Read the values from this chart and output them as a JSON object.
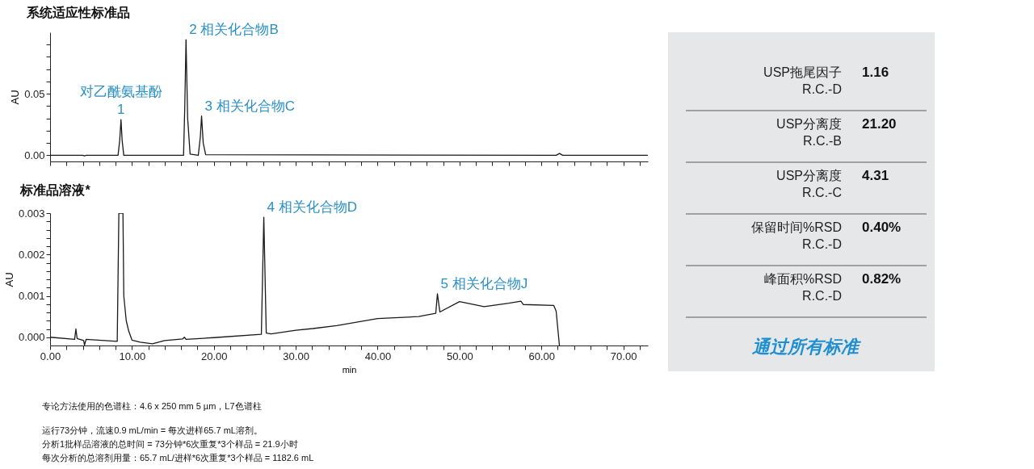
{
  "chart_data": [
    {
      "type": "line",
      "title": "系统适应性标准品",
      "ylabel": "AU",
      "color": "#1a1a1a",
      "tick_labels": "y",
      "grid": false,
      "x": [
        0,
        4.0,
        4.2,
        4.4,
        8.3,
        8.5,
        8.66,
        8.8,
        9.0,
        16.3,
        16.45,
        16.6,
        16.8,
        17.1,
        18.1,
        18.35,
        18.5,
        18.7,
        19.0,
        61.8,
        62.2,
        62.6,
        73
      ],
      "values": [
        0,
        0,
        -0.0005,
        0,
        0,
        0.012,
        0.029,
        0.012,
        0,
        0,
        0.04,
        0.094,
        0.03,
        0.001,
        0,
        0.015,
        0.032,
        0.01,
        0.0005,
        0,
        0.0015,
        0,
        0
      ],
      "xlim": [
        0,
        73
      ],
      "xticks": [
        {
          "value": 0,
          "label": null
        },
        {
          "value": 2,
          "label": null
        },
        {
          "value": 4,
          "label": null
        },
        {
          "value": 6,
          "label": null
        },
        {
          "value": 8,
          "label": null
        },
        {
          "value": 10,
          "label": null
        },
        {
          "value": 12,
          "label": null
        },
        {
          "value": 14,
          "label": null
        },
        {
          "value": 16,
          "label": null
        },
        {
          "value": 18,
          "label": null
        },
        {
          "value": 20,
          "label": null
        },
        {
          "value": 22,
          "label": null
        },
        {
          "value": 24,
          "label": null
        },
        {
          "value": 26,
          "label": null
        },
        {
          "value": 28,
          "label": null
        },
        {
          "value": 30,
          "label": null
        },
        {
          "value": 32,
          "label": null
        },
        {
          "value": 34,
          "label": null
        },
        {
          "value": 36,
          "label": null
        },
        {
          "value": 38,
          "label": null
        },
        {
          "value": 40,
          "label": null
        },
        {
          "value": 42,
          "label": null
        },
        {
          "value": 44,
          "label": null
        },
        {
          "value": 46,
          "label": null
        },
        {
          "value": 48,
          "label": null
        },
        {
          "value": 50,
          "label": null
        },
        {
          "value": 52,
          "label": null
        },
        {
          "value": 54,
          "label": null
        },
        {
          "value": 56,
          "label": null
        },
        {
          "value": 58,
          "label": null
        },
        {
          "value": 60,
          "label": null
        },
        {
          "value": 62,
          "label": null
        },
        {
          "value": 64,
          "label": null
        },
        {
          "value": 66,
          "label": null
        },
        {
          "value": 68,
          "label": null
        },
        {
          "value": 70,
          "label": null
        },
        {
          "value": 72,
          "label": null
        }
      ],
      "ylim": [
        -0.005,
        0.1
      ],
      "yticks": [
        {
          "value": 0,
          "label": "0.00"
        },
        {
          "value": 0.01,
          "label": null
        },
        {
          "value": 0.02,
          "label": null
        },
        {
          "value": 0.03,
          "label": null
        },
        {
          "value": 0.04,
          "label": null
        },
        0.05,
        {
          "value": 0.06,
          "label": null
        },
        {
          "value": 0.07,
          "label": null
        },
        {
          "value": 0.08,
          "label": null
        },
        {
          "value": 0.09,
          "label": null
        }
      ],
      "annotations": [
        {
          "text": "1",
          "x": 8.66,
          "y": 0.029
        },
        {
          "text": "对乙酰氨基酚",
          "x": 8.66,
          "y": 0.029
        },
        {
          "text": "2  相关化合物B",
          "x": 16.6,
          "y": 0.094
        },
        {
          "text": "3  相关化合物C",
          "x": 18.5,
          "y": 0.032
        }
      ]
    },
    {
      "type": "line",
      "title": "标准品溶液*",
      "xlabel": "min",
      "ylabel": "AU",
      "color": "#1a1a1a",
      "grid": false,
      "x": [
        0,
        3.0,
        3.15,
        3.3,
        4.1,
        4.2,
        4.4,
        8.2,
        8.4,
        8.5,
        8.9,
        9.0,
        9.3,
        9.6,
        10.0,
        11.0,
        12.5,
        14.0,
        16.2,
        16.4,
        16.6,
        20.0,
        25.8,
        26.1,
        26.4,
        27.0,
        30.0,
        32.1,
        35.0,
        40.0,
        45.0,
        47.1,
        47.3,
        47.6,
        50.0,
        53.0,
        56.0,
        57.5,
        57.8,
        61.5,
        61.8,
        62.2
      ],
      "values": [
        0,
        -5e-05,
        0.0002,
        -3e-05,
        -8e-05,
        -0.00019,
        -5e-05,
        -0.0001,
        0.003,
        0.003,
        0.003,
        0.001,
        0.0004,
        0.00015,
        -7e-05,
        -0.00012,
        -0.00016,
        -8e-05,
        -4e-05,
        0.0,
        -5e-05,
        -1e-05,
        7e-05,
        0.0029,
        0.0001,
        8e-05,
        0.00017,
        0.00021,
        0.00028,
        0.00045,
        0.0005,
        0.00058,
        0.00105,
        0.00061,
        0.00086,
        0.00074,
        0.00082,
        0.00087,
        0.00079,
        0.00077,
        0.00063,
        -0.0002
      ],
      "xlim": [
        0,
        73
      ],
      "xticks": [
        {
          "value": 0,
          "label": "0.00"
        },
        {
          "value": 2,
          "label": null
        },
        {
          "value": 4,
          "label": null
        },
        {
          "value": 6,
          "label": null
        },
        {
          "value": 8,
          "label": null
        },
        {
          "value": 10,
          "label": "10.00"
        },
        {
          "value": 12,
          "label": null
        },
        {
          "value": 14,
          "label": null
        },
        {
          "value": 16,
          "label": null
        },
        {
          "value": 18,
          "label": null
        },
        {
          "value": 20,
          "label": "20.00"
        },
        {
          "value": 22,
          "label": null
        },
        {
          "value": 24,
          "label": null
        },
        {
          "value": 26,
          "label": null
        },
        {
          "value": 28,
          "label": null
        },
        {
          "value": 30,
          "label": "30.00"
        },
        {
          "value": 32,
          "label": null
        },
        {
          "value": 34,
          "label": null
        },
        {
          "value": 36,
          "label": null
        },
        {
          "value": 38,
          "label": null
        },
        {
          "value": 40,
          "label": "40.00"
        },
        {
          "value": 42,
          "label": null
        },
        {
          "value": 44,
          "label": null
        },
        {
          "value": 46,
          "label": null
        },
        {
          "value": 48,
          "label": null
        },
        {
          "value": 50,
          "label": "50.00"
        },
        {
          "value": 52,
          "label": null
        },
        {
          "value": 54,
          "label": null
        },
        {
          "value": 56,
          "label": null
        },
        {
          "value": 58,
          "label": null
        },
        {
          "value": 60,
          "label": "60.00"
        },
        {
          "value": 62,
          "label": null
        },
        {
          "value": 64,
          "label": null
        },
        {
          "value": 66,
          "label": null
        },
        {
          "value": 68,
          "label": null
        },
        {
          "value": 70,
          "label": "70.00"
        },
        {
          "value": 72,
          "label": null
        }
      ],
      "ylim": [
        -0.0002,
        0.003
      ],
      "yticks": [
        {
          "value": 0,
          "label": "0.000"
        },
        {
          "value": 0.0002,
          "label": null
        },
        {
          "value": 0.0004,
          "label": null
        },
        {
          "value": 0.0006,
          "label": null
        },
        {
          "value": 0.0008,
          "label": null
        },
        0.001,
        {
          "value": 0.0012,
          "label": null
        },
        {
          "value": 0.0014,
          "label": null
        },
        {
          "value": 0.0016,
          "label": null
        },
        {
          "value": 0.0018,
          "label": null
        },
        0.002,
        {
          "value": 0.0022,
          "label": null
        },
        {
          "value": 0.0024,
          "label": null
        },
        {
          "value": 0.0026,
          "label": null
        },
        {
          "value": 0.0028,
          "label": null
        },
        0.003
      ],
      "annotations": [
        {
          "text": "4  相关化合物D",
          "x": 26.1,
          "y": 0.0029
        },
        {
          "text": "5  相关化合物J",
          "x": 47.3,
          "y": 0.00105
        },
        "专论方法使用的色谱柱：4.6 x 250 mm 5 µm，L7色谱柱",
        "运行73分钟，流速0.9 mL/min = 每次进样65.7 mL溶剂。",
        "分析1批样品溶液的总时间 = 73分钟*6次重复*3个样品 = 21.9小时",
        "每次分析的总溶剂用量：65.7 mL/进样*6次重复*3个样品 = 1182.6 mL"
      ]
    },
    {
      "type": "other",
      "categories": [
        "USP拖尾因子\nR.C.-D",
        "USP分离度\nR.C.-B",
        "USP分离度\nR.C.-C",
        "保留时间%RSD\nR.C.-D",
        "峰面积%RSD\nR.C.-D"
      ],
      "value_labels": [
        "1.16",
        "21.20",
        "4.31",
        "0.40%",
        "0.82%"
      ],
      "annotations": [
        "通过所有标准"
      ]
    }
  ]
}
